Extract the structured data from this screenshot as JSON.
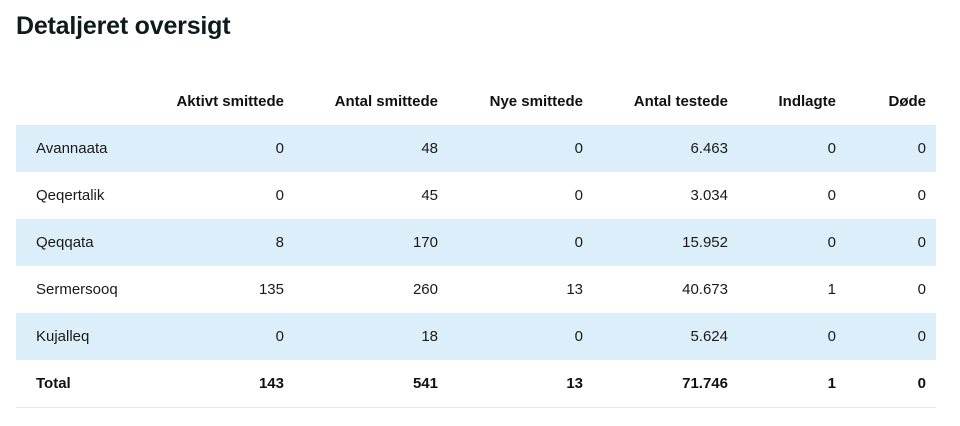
{
  "page": {
    "title": "Detaljeret oversigt"
  },
  "table": {
    "headers": [
      "",
      "Aktivt smittede",
      "Antal smittede",
      "Nye smittede",
      "Antal testede",
      "Indlagte",
      "Døde"
    ],
    "rows": [
      [
        "Avannaata",
        "0",
        "48",
        "0",
        "6.463",
        "0",
        "0"
      ],
      [
        "Qeqertalik",
        "0",
        "45",
        "0",
        "3.034",
        "0",
        "0"
      ],
      [
        "Qeqqata",
        "8",
        "170",
        "0",
        "15.952",
        "0",
        "0"
      ],
      [
        "Sermersooq",
        "135",
        "260",
        "13",
        "40.673",
        "1",
        "0"
      ],
      [
        "Kujalleq",
        "0",
        "18",
        "0",
        "5.624",
        "0",
        "0"
      ]
    ],
    "total": [
      "Total",
      "143",
      "541",
      "13",
      "71.746",
      "1",
      "0"
    ]
  },
  "colors": {
    "stripe": "#dbeefa",
    "text": "#111111",
    "divider": "#e3e7ea"
  }
}
